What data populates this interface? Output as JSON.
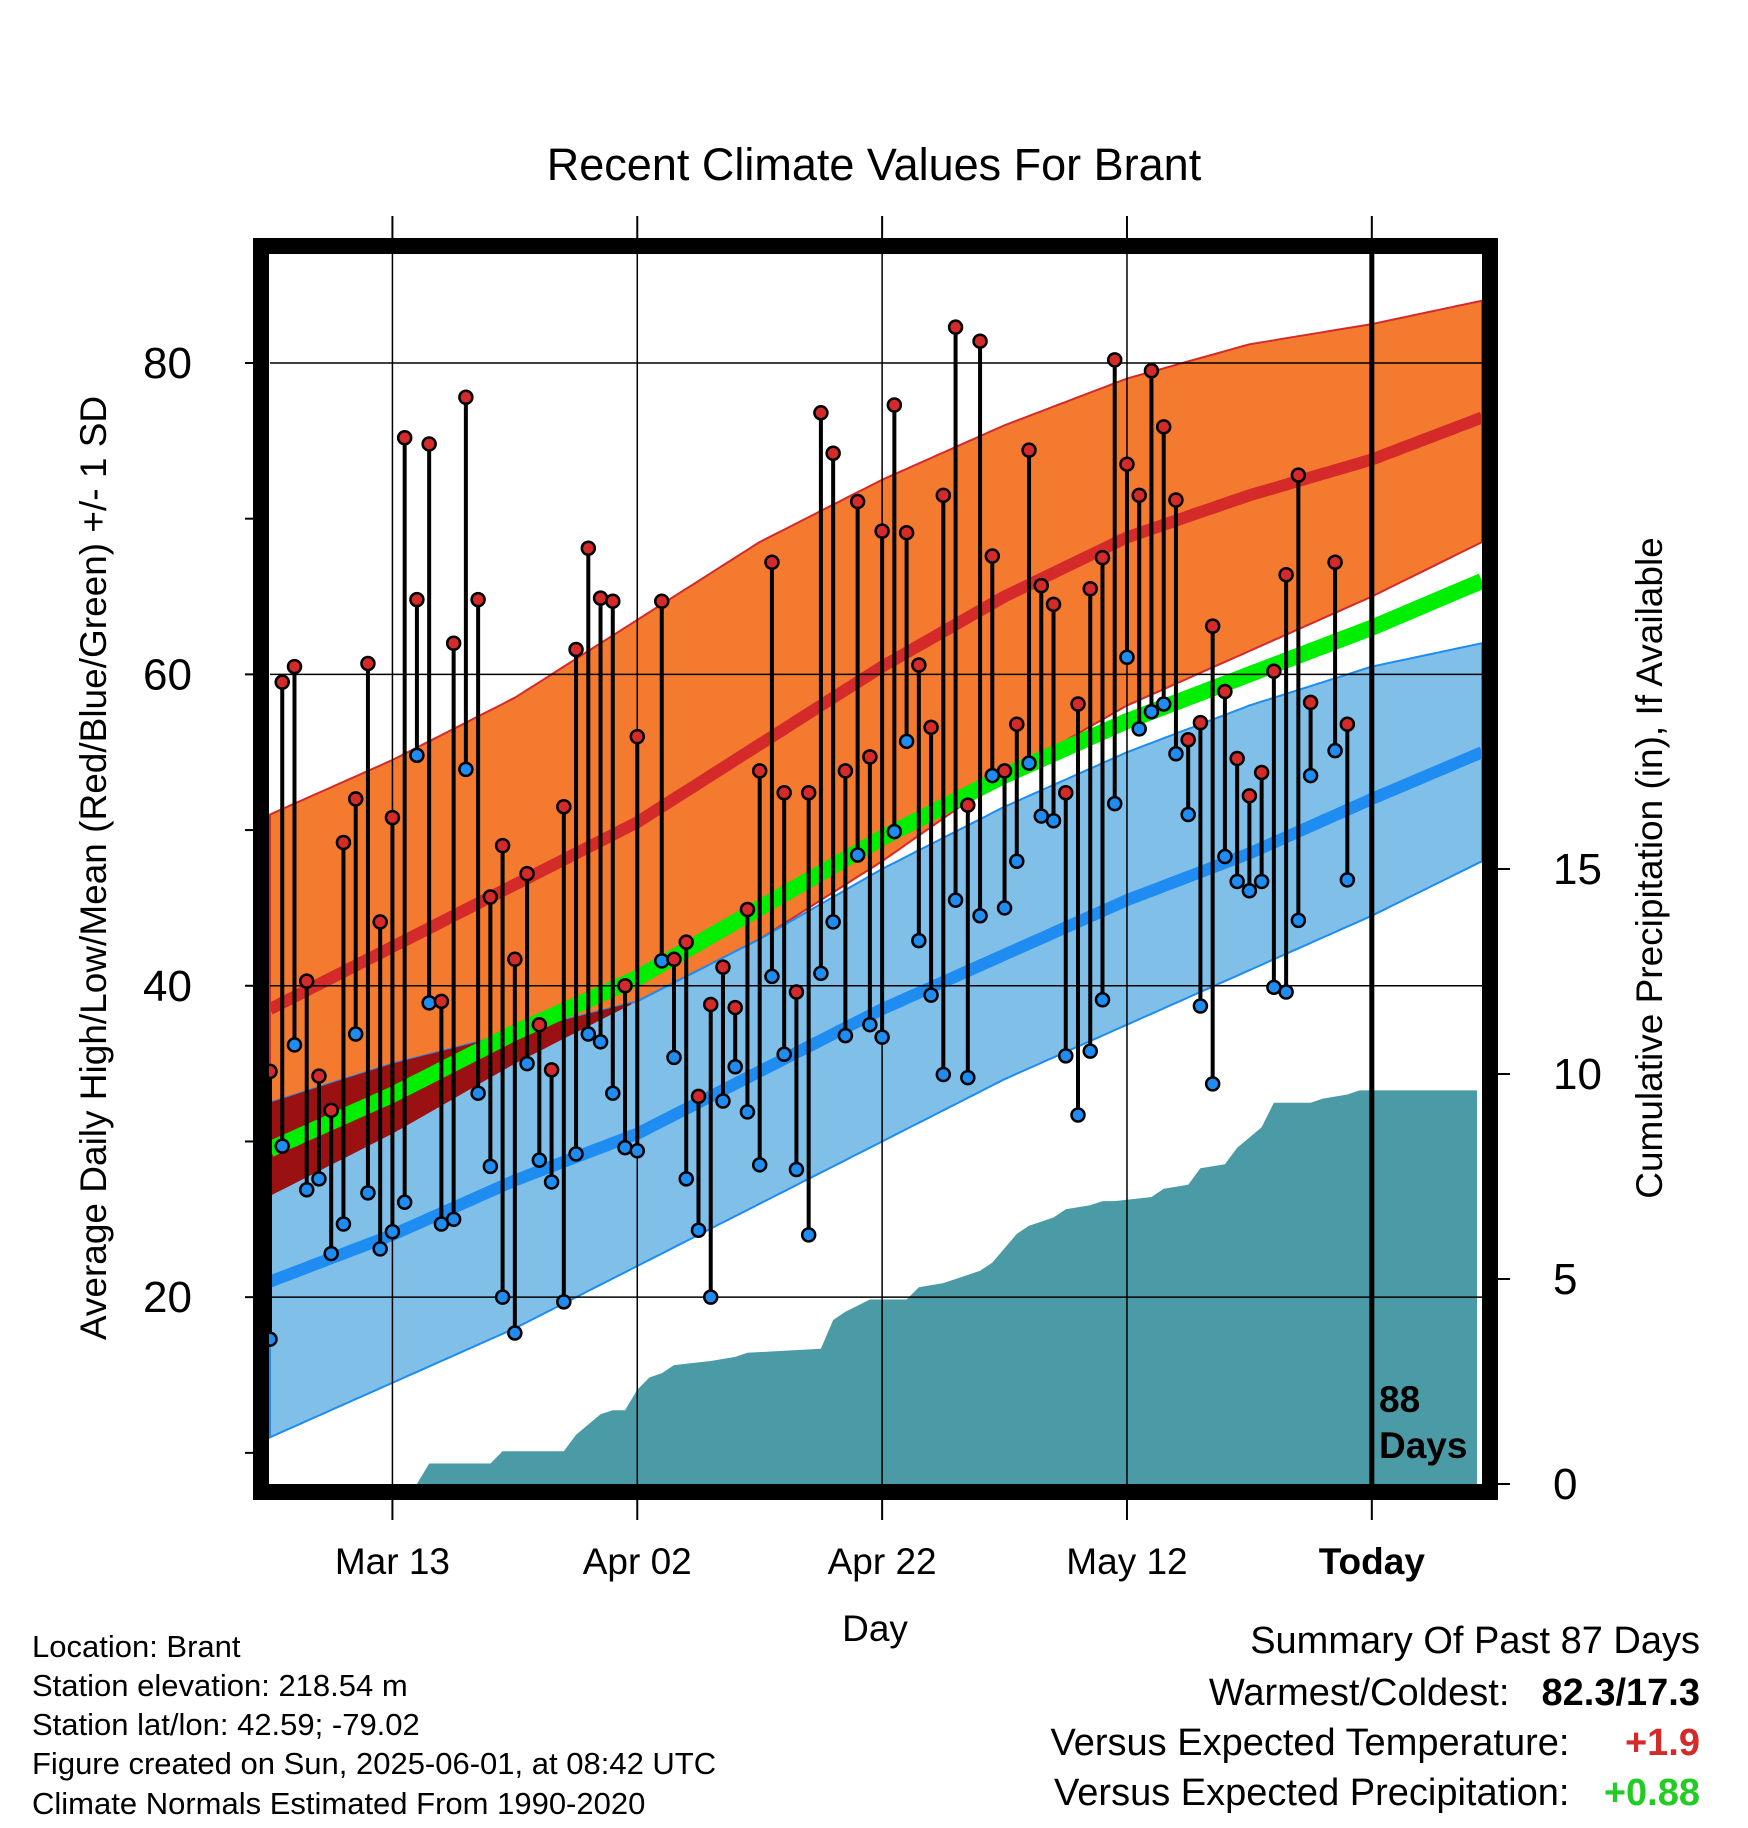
{
  "chart_data": {
    "type": "line",
    "title": "Recent Climate Values For Brant",
    "xlabel": "Day",
    "ylabel": "Average Daily High/Low/Mean (Red/Blue/Green) +/- 1 SD",
    "y2label": "Cumulative Precipitation (in), If Available",
    "ylim": [
      8,
      87
    ],
    "y2lim": [
      0,
      30
    ],
    "yticks": [
      20,
      40,
      60,
      80
    ],
    "yminor_ticks": [
      10,
      30,
      50,
      70
    ],
    "y2ticks": [
      0,
      5,
      10,
      15
    ],
    "xlim": [
      0,
      99
    ],
    "xticks": [
      {
        "day": 10,
        "label": "Mar 13"
      },
      {
        "day": 30,
        "label": "Apr 02"
      },
      {
        "day": 50,
        "label": "Apr 22"
      },
      {
        "day": 70,
        "label": "May 12"
      },
      {
        "day": 90,
        "label": "Today"
      }
    ],
    "grid": true,
    "today_day": 90,
    "today_annotation": "88 Days",
    "normals": {
      "days": [
        0,
        10,
        20,
        30,
        40,
        50,
        60,
        70,
        80,
        90,
        99
      ],
      "high_mean": [
        38.5,
        42.5,
        46.5,
        50.5,
        55.5,
        60.5,
        65,
        68.8,
        71.5,
        73.8,
        76.5
      ],
      "high_upper": [
        51,
        54.5,
        58.5,
        63.5,
        68.5,
        72.5,
        76,
        79,
        81.2,
        82.5,
        84
      ],
      "high_lower": [
        26.5,
        30.5,
        35,
        39,
        43,
        48,
        53.5,
        58,
        61.5,
        65,
        68.5
      ],
      "low_mean": [
        21,
        24,
        27.5,
        30.5,
        34.5,
        38.5,
        42,
        45.5,
        48.5,
        52,
        55
      ],
      "low_upper": [
        32.5,
        35,
        37,
        39,
        43,
        47.5,
        51.5,
        55,
        58,
        60.5,
        62
      ],
      "low_lower": [
        11,
        14.5,
        18,
        22,
        26,
        30,
        34,
        37.5,
        41,
        44.5,
        48
      ],
      "mean_mean": [
        29.5,
        33,
        37,
        40.5,
        45,
        49.5,
        53.5,
        57,
        60,
        63,
        66
      ]
    },
    "series": [
      {
        "name": "High",
        "color": "#d42a2a",
        "values": [
          34.5,
          59.5,
          60.5,
          40.3,
          34.2,
          32,
          49.2,
          52,
          60.7,
          44.1,
          50.8,
          75.2,
          64.8,
          74.8,
          39,
          62,
          77.8,
          64.8,
          45.7,
          49,
          41.7,
          47.2,
          37.5,
          34.6,
          51.5,
          61.6,
          68.1,
          64.9,
          64.7,
          40,
          56,
          null,
          64.7,
          41.7,
          42.8,
          32.9,
          38.8,
          41.2,
          38.6,
          44.9,
          53.8,
          67.2,
          52.4,
          39.6,
          52.4,
          76.8,
          74.2,
          53.8,
          71.1,
          54.7,
          69.2,
          77.3,
          69.1,
          60.6,
          56.6,
          71.5,
          82.3,
          51.6,
          81.4,
          67.6,
          53.8,
          56.8,
          74.4,
          65.7,
          64.5,
          52.4,
          58.1,
          65.5,
          67.5,
          80.2,
          73.5,
          71.5,
          79.5,
          75.9,
          71.2,
          55.8,
          56.9,
          63.1,
          58.9,
          54.6,
          52.2,
          53.7,
          60.2,
          66.4,
          72.8,
          58.2,
          null,
          67.2,
          56.8
        ]
      },
      {
        "name": "Low",
        "color": "#2e8cd8",
        "values": [
          17.3,
          29.7,
          36.2,
          26.9,
          27.6,
          22.8,
          24.7,
          36.9,
          26.7,
          23.1,
          24.2,
          26.1,
          54.8,
          38.9,
          24.7,
          25,
          53.9,
          33.1,
          28.4,
          20,
          17.7,
          35,
          28.8,
          27.4,
          19.7,
          29.2,
          36.9,
          36.4,
          33.1,
          29.6,
          29.4,
          null,
          41.6,
          35.4,
          27.6,
          24.3,
          20,
          32.6,
          34.8,
          31.9,
          28.5,
          40.6,
          35.6,
          28.2,
          24,
          40.8,
          44.1,
          36.8,
          48.4,
          37.5,
          36.7,
          49.9,
          55.7,
          42.9,
          39.4,
          34.3,
          45.5,
          34.1,
          44.5,
          53.5,
          45,
          48,
          54.3,
          50.9,
          50.6,
          35.5,
          31.7,
          35.8,
          39.1,
          51.7,
          61.1,
          56.5,
          57.6,
          58.1,
          54.9,
          51,
          38.7,
          33.7,
          48.3,
          46.7,
          46.1,
          46.7,
          39.9,
          39.6,
          44.2,
          53.5,
          null,
          55.1,
          46.8
        ]
      },
      {
        "name": "Cumulative Precipitation",
        "color": "#4a9ba6",
        "days": [
          0,
          12,
          13,
          18,
          19,
          24,
          25,
          27,
          28,
          29,
          30,
          31,
          32,
          33,
          36,
          38,
          39,
          45,
          46,
          47,
          49,
          52,
          53,
          55,
          56,
          58,
          59,
          61,
          62,
          64,
          65,
          67,
          68,
          69,
          72,
          73,
          75,
          76,
          78,
          79,
          81,
          82,
          85,
          86,
          88,
          89,
          99
        ],
        "values": [
          0,
          0,
          0.5,
          0.5,
          0.8,
          0.8,
          1.2,
          1.7,
          1.8,
          1.8,
          2.3,
          2.6,
          2.7,
          2.9,
          3.0,
          3.1,
          3.2,
          3.3,
          4.0,
          4.2,
          4.5,
          4.5,
          4.8,
          4.9,
          5.0,
          5.2,
          5.4,
          6.1,
          6.3,
          6.5,
          6.7,
          6.8,
          6.9,
          6.9,
          7.0,
          7.2,
          7.3,
          7.7,
          7.8,
          8.2,
          8.7,
          9.3,
          9.3,
          9.4,
          9.5,
          9.6,
          9.6
        ]
      }
    ]
  },
  "info": {
    "location": "Location: Brant",
    "elevation": "Station elevation: 218.54 m",
    "latlon": "Station lat/lon: 42.59; -79.02",
    "created": "Figure created on Sun, 2025-06-01, at 08:42 UTC",
    "normals": "Climate Normals Estimated From 1990-2020"
  },
  "summary": {
    "title": "Summary Of Past 87 Days",
    "warmest_coldest_label": "Warmest/Coldest:",
    "warmest_coldest_value": "82.3/17.3",
    "temp_label": "Versus Expected Temperature:",
    "temp_value": "+1.9",
    "precip_label": "Versus Expected Precipitation:",
    "precip_value": "+0.88"
  },
  "colors": {
    "high_band": "#f47a30",
    "high_line": "#d42a2a",
    "low_band": "#80c0e8",
    "low_line": "#1e8cf0",
    "mean_line": "#00ee00",
    "overlap": "#9b1010",
    "precip": "#4a9ba6",
    "temp_value": "#d42a2a",
    "precip_value": "#22cc22"
  }
}
